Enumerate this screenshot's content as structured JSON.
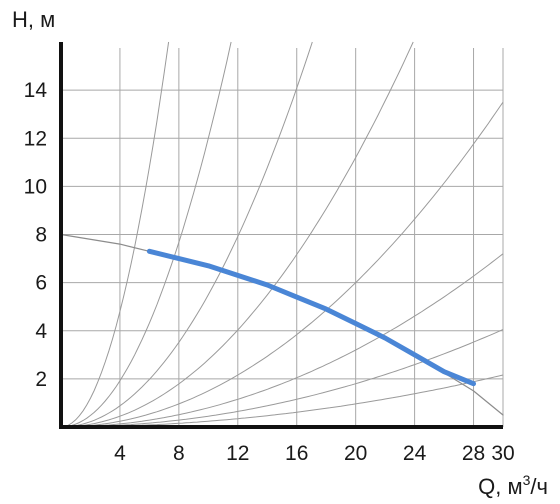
{
  "chart_data": {
    "type": "line",
    "title": "",
    "ylabel": "H, м",
    "xlabel_main": "Q, м",
    "xlabel_sup": "3",
    "xlabel_tail": "/ч",
    "xlim": [
      0,
      30
    ],
    "ylim": [
      0,
      16
    ],
    "x_ticks": [
      4,
      8,
      12,
      16,
      20,
      24,
      28,
      30
    ],
    "x_tick_labels": [
      "4",
      "8",
      "12",
      "16",
      "20",
      "24",
      "28",
      "30"
    ],
    "y_ticks": [
      2,
      4,
      6,
      8,
      10,
      12,
      14
    ],
    "y_tick_labels": [
      "2",
      "4",
      "6",
      "8",
      "10",
      "12",
      "14"
    ],
    "grid": true,
    "system_curve_coefficients": [
      0.3,
      0.12,
      0.055,
      0.028,
      0.015,
      0.008,
      0.0045,
      0.0024
    ],
    "series": [
      {
        "color": "#4a86d6",
        "x": [
          6,
          8,
          10,
          12,
          14,
          16,
          18,
          20,
          22,
          24,
          26,
          28
        ],
        "y": [
          7.3,
          7.0,
          6.7,
          6.3,
          5.9,
          5.4,
          4.9,
          4.3,
          3.7,
          3.0,
          2.3,
          1.8
        ]
      },
      {
        "color": "#8c8c8c",
        "x": [
          0,
          4,
          8,
          12,
          16,
          20,
          24,
          28,
          30
        ],
        "y": [
          8.0,
          7.6,
          7.0,
          6.3,
          5.4,
          4.3,
          3.0,
          1.5,
          0.5
        ]
      }
    ]
  }
}
